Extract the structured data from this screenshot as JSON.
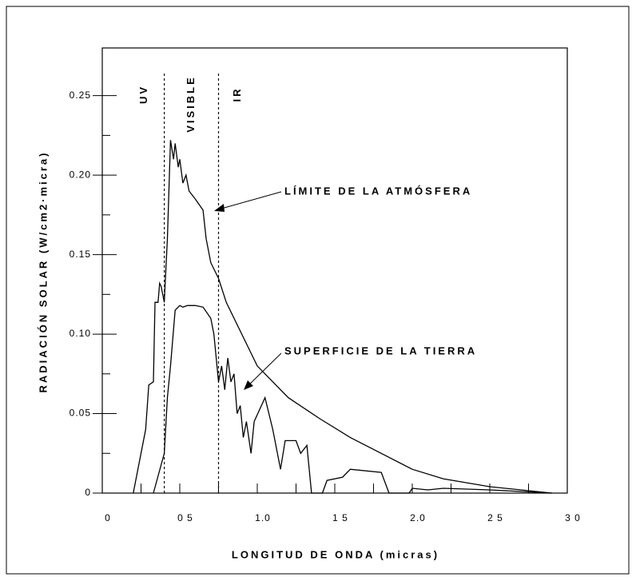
{
  "chart_data": {
    "type": "line",
    "xlabel": "LONGITUD DE ONDA (micras)",
    "ylabel": "RADIACIÓN SOLAR (W/cm2·micra)",
    "xlim": [
      0,
      3.0
    ],
    "ylim": [
      0,
      0.28
    ],
    "xticks": [
      0,
      {
        "value": 0.5,
        "label": "0 5"
      },
      {
        "value": 1.0,
        "label": "1.0"
      },
      {
        "value": 1.5,
        "label": "1 5"
      },
      {
        "value": 2.0,
        "label": "2.0"
      },
      {
        "value": 2.5,
        "label": "2 5"
      },
      {
        "value": 3.0,
        "label": "3 0"
      }
    ],
    "xminorticks": [
      0.25,
      0.75,
      1.25,
      1.75,
      2.25,
      2.75
    ],
    "yticks": [
      0,
      0.05,
      {
        "value": 0.1,
        "label": "0.10"
      },
      0.15,
      {
        "value": 0.2,
        "label": "0.20"
      },
      0.25
    ],
    "yminorticks": [
      0.025,
      0.075,
      0.125,
      0.175,
      0.225
    ],
    "vlines": [
      0.4,
      0.75
    ],
    "regions": [
      "UV",
      "VISIBLE",
      "IR"
    ],
    "series": [
      {
        "name": "LÍMITE DE LA ATMÓSFERA",
        "color": "#000000",
        "x": [
          0.2,
          0.28,
          0.3,
          0.33,
          0.34,
          0.36,
          0.37,
          0.38,
          0.4,
          0.42,
          0.44,
          0.46,
          0.47,
          0.49,
          0.5,
          0.52,
          0.54,
          0.56,
          0.6,
          0.65,
          0.67,
          0.7,
          0.75,
          0.8,
          0.9,
          1.0,
          1.2,
          1.4,
          1.6,
          1.8,
          2.0,
          2.2,
          2.5,
          2.9
        ],
        "values": [
          0,
          0.04,
          0.068,
          0.07,
          0.12,
          0.12,
          0.132,
          0.13,
          0.12,
          0.16,
          0.222,
          0.21,
          0.22,
          0.205,
          0.21,
          0.195,
          0.2,
          0.19,
          0.185,
          0.178,
          0.16,
          0.145,
          0.135,
          0.12,
          0.1,
          0.08,
          0.06,
          0.047,
          0.035,
          0.025,
          0.015,
          0.009,
          0.004,
          0
        ]
      },
      {
        "name": "SUPERFICIE DE LA TIERRA",
        "color": "#000000",
        "x": [
          0.33,
          0.4,
          0.42,
          0.44,
          0.47,
          0.5,
          0.52,
          0.55,
          0.6,
          0.65,
          0.7,
          0.72,
          0.75,
          0.77,
          0.79,
          0.81,
          0.83,
          0.85,
          0.87,
          0.89,
          0.91,
          0.93,
          0.96,
          0.98,
          1.05,
          1.1,
          1.15,
          1.18,
          1.25,
          1.28,
          1.32,
          1.35,
          1.42,
          1.45,
          1.55,
          1.6,
          1.8,
          1.85,
          1.98,
          2.0,
          2.1,
          2.2,
          2.5,
          2.9
        ],
        "values": [
          0,
          0.025,
          0.06,
          0.08,
          0.115,
          0.118,
          0.117,
          0.118,
          0.118,
          0.117,
          0.11,
          0.1,
          0.07,
          0.08,
          0.065,
          0.085,
          0.07,
          0.075,
          0.05,
          0.055,
          0.035,
          0.045,
          0.025,
          0.045,
          0.06,
          0.04,
          0.015,
          0.033,
          0.033,
          0.025,
          0.03,
          0,
          0,
          0.008,
          0.01,
          0.015,
          0.013,
          0,
          0,
          0.003,
          0.002,
          0.003,
          0.002,
          0
        ]
      }
    ]
  }
}
